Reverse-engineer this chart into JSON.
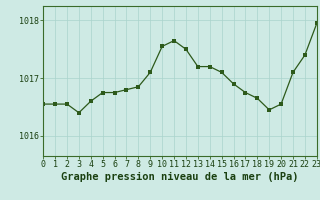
{
  "x": [
    0,
    1,
    2,
    3,
    4,
    5,
    6,
    7,
    8,
    9,
    10,
    11,
    12,
    13,
    14,
    15,
    16,
    17,
    18,
    19,
    20,
    21,
    22,
    23
  ],
  "y": [
    1016.55,
    1016.55,
    1016.55,
    1016.4,
    1016.6,
    1016.75,
    1016.75,
    1016.8,
    1016.85,
    1017.1,
    1017.55,
    1017.65,
    1017.5,
    1017.2,
    1017.2,
    1017.1,
    1016.9,
    1016.75,
    1016.65,
    1016.45,
    1016.55,
    1017.1,
    1017.4,
    1017.95
  ],
  "line_color": "#2d5a1b",
  "marker": "s",
  "marker_size": 2.5,
  "bg_color": "#ceeae4",
  "grid_color": "#aad4cc",
  "ylabel_ticks": [
    1016,
    1017,
    1018
  ],
  "xticks": [
    0,
    1,
    2,
    3,
    4,
    5,
    6,
    7,
    8,
    9,
    10,
    11,
    12,
    13,
    14,
    15,
    16,
    17,
    18,
    19,
    20,
    21,
    22,
    23
  ],
  "xlim": [
    0,
    23
  ],
  "ylim": [
    1015.65,
    1018.25
  ],
  "xlabel": "Graphe pression niveau de la mer (hPa)",
  "xlabel_fontsize": 7.5,
  "tick_fontsize": 6.0,
  "axis_color": "#3a6b2a",
  "label_color": "#1a4010"
}
